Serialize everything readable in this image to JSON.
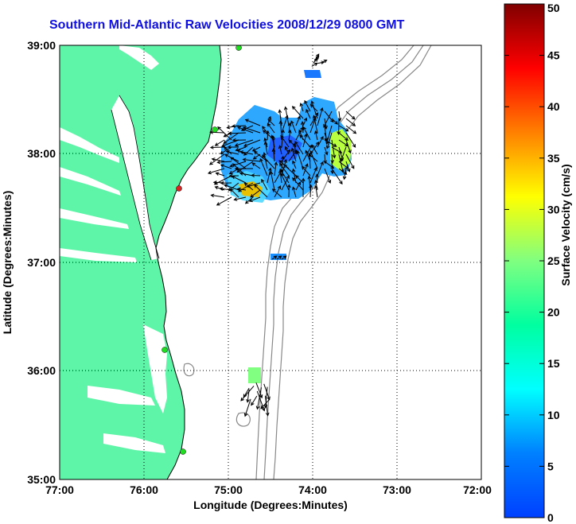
{
  "title": "Southern Mid-Atlantic Raw Velocities 2008/12/29 0800 GMT",
  "x_axis": {
    "label": "Longitude (Degrees:Minutes)",
    "ticks": [
      "77:00",
      "76:00",
      "75:00",
      "74:00",
      "73:00",
      "72:00"
    ]
  },
  "y_axis": {
    "label": "Latitude (Degrees:Minutes)",
    "ticks": [
      "39:00",
      "38:00",
      "37:00",
      "36:00",
      "35:00"
    ]
  },
  "colorbar": {
    "label": "Surface Velocity (cm/s)",
    "ticks": [
      "50",
      "45",
      "40",
      "35",
      "30",
      "25",
      "20",
      "15",
      "10",
      "5",
      "0"
    ],
    "min": 0,
    "max": 50,
    "colormap": "jet"
  },
  "colors": {
    "title": "#1010e0",
    "land": "#5ef5a8",
    "isobath": "#888888",
    "site_marker": "#22dd22",
    "site_marker_alert": "#dd2222"
  },
  "chart_data": {
    "type": "map",
    "lon_range": [
      -77,
      -72
    ],
    "lat_range": [
      35,
      39
    ],
    "grid": true,
    "velocity_regions": [
      {
        "name": "main_field",
        "lon_range": [
          -75.1,
          -73.4
        ],
        "lat_range": [
          37.6,
          38.55
        ],
        "typical_speed_cm_s": 8
      },
      {
        "name": "southwest_patch",
        "lon_range": [
          -75.0,
          -74.75
        ],
        "lat_range": [
          37.6,
          37.8
        ],
        "typical_speed_cm_s": 27
      },
      {
        "name": "east_patch",
        "lon_range": [
          -73.85,
          -73.5
        ],
        "lat_range": [
          37.85,
          38.1
        ],
        "typical_speed_cm_s": 22
      },
      {
        "name": "north_patch",
        "lon_range": [
          -74.05,
          -73.9
        ],
        "lat_range": [
          38.7,
          38.75
        ],
        "typical_speed_cm_s": 7
      },
      {
        "name": "mid_patch",
        "lon_range": [
          -74.55,
          -74.4
        ],
        "lat_range": [
          37.0,
          37.05
        ],
        "typical_speed_cm_s": 8
      },
      {
        "name": "south_patch",
        "lon_range": [
          -74.75,
          -74.6
        ],
        "lat_range": [
          35.8,
          36.0
        ],
        "typical_speed_cm_s": 20
      }
    ],
    "radar_sites": [
      {
        "lon": -75.1,
        "lat": 38.98,
        "status": "active"
      },
      {
        "lon": -75.17,
        "lat": 38.24,
        "status": "active"
      },
      {
        "lon": -75.58,
        "lat": 37.67,
        "status": "alert"
      },
      {
        "lon": -75.75,
        "lat": 36.17,
        "status": "active"
      },
      {
        "lon": -75.52,
        "lat": 35.28,
        "status": "active"
      }
    ]
  }
}
